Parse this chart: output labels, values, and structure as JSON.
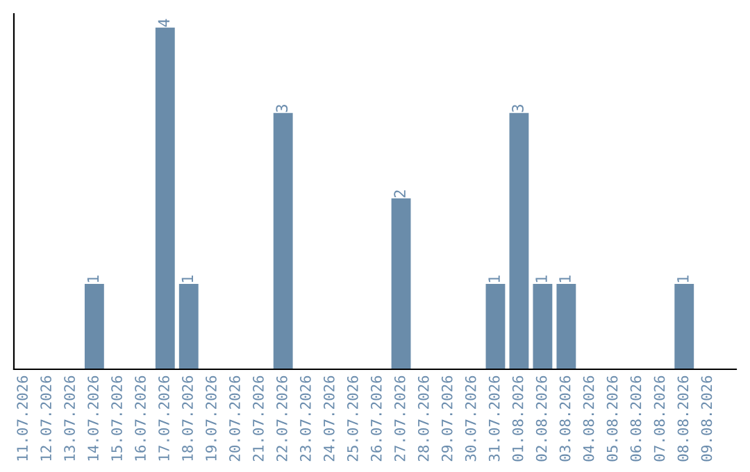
{
  "chart_data": {
    "type": "bar",
    "categories": [
      "11.07.2026",
      "12.07.2026",
      "13.07.2026",
      "14.07.2026",
      "15.07.2026",
      "16.07.2026",
      "17.07.2026",
      "18.07.2026",
      "19.07.2026",
      "20.07.2026",
      "21.07.2026",
      "22.07.2026",
      "23.07.2026",
      "24.07.2026",
      "25.07.2026",
      "26.07.2026",
      "27.07.2026",
      "28.07.2026",
      "29.07.2026",
      "30.07.2026",
      "31.07.2026",
      "01.08.2026",
      "02.08.2026",
      "03.08.2026",
      "04.08.2026",
      "05.08.2026",
      "06.08.2026",
      "07.08.2026",
      "08.08.2026",
      "09.08.2026"
    ],
    "values": [
      0,
      0,
      0,
      1,
      0,
      0,
      4,
      1,
      0,
      0,
      0,
      3,
      0,
      0,
      0,
      0,
      2,
      0,
      0,
      0,
      1,
      3,
      1,
      1,
      0,
      0,
      0,
      0,
      1,
      0
    ],
    "value_labels": [
      null,
      null,
      null,
      "1",
      null,
      null,
      "4",
      "1",
      null,
      null,
      null,
      "3",
      null,
      null,
      null,
      null,
      "2",
      null,
      null,
      null,
      "1",
      "3",
      "1",
      "1",
      null,
      null,
      null,
      null,
      "1",
      null
    ],
    "color": "#6a8caa",
    "grid": false,
    "legend": false
  }
}
